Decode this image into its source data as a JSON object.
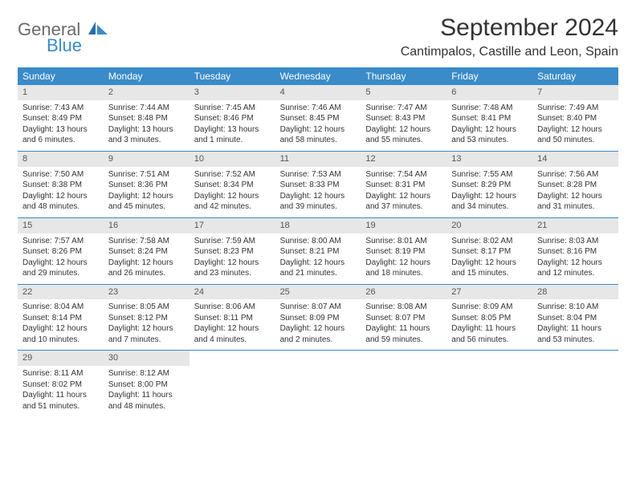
{
  "logo": {
    "text1": "General",
    "text2": "Blue"
  },
  "title": "September 2024",
  "location": "Cantimpalos, Castille and Leon, Spain",
  "colors": {
    "header_bg": "#3a8bc9",
    "header_text": "#ffffff",
    "daynum_bg": "#e7e7e7",
    "logo_gray": "#6b6b6b",
    "logo_blue": "#3a8bc9",
    "text": "#333333",
    "row_border": "#3a8bc9"
  },
  "weekdays": [
    "Sunday",
    "Monday",
    "Tuesday",
    "Wednesday",
    "Thursday",
    "Friday",
    "Saturday"
  ],
  "weeks": [
    [
      {
        "day": "1",
        "sunrise": "Sunrise: 7:43 AM",
        "sunset": "Sunset: 8:49 PM",
        "daylight": "Daylight: 13 hours and 6 minutes."
      },
      {
        "day": "2",
        "sunrise": "Sunrise: 7:44 AM",
        "sunset": "Sunset: 8:48 PM",
        "daylight": "Daylight: 13 hours and 3 minutes."
      },
      {
        "day": "3",
        "sunrise": "Sunrise: 7:45 AM",
        "sunset": "Sunset: 8:46 PM",
        "daylight": "Daylight: 13 hours and 1 minute."
      },
      {
        "day": "4",
        "sunrise": "Sunrise: 7:46 AM",
        "sunset": "Sunset: 8:45 PM",
        "daylight": "Daylight: 12 hours and 58 minutes."
      },
      {
        "day": "5",
        "sunrise": "Sunrise: 7:47 AM",
        "sunset": "Sunset: 8:43 PM",
        "daylight": "Daylight: 12 hours and 55 minutes."
      },
      {
        "day": "6",
        "sunrise": "Sunrise: 7:48 AM",
        "sunset": "Sunset: 8:41 PM",
        "daylight": "Daylight: 12 hours and 53 minutes."
      },
      {
        "day": "7",
        "sunrise": "Sunrise: 7:49 AM",
        "sunset": "Sunset: 8:40 PM",
        "daylight": "Daylight: 12 hours and 50 minutes."
      }
    ],
    [
      {
        "day": "8",
        "sunrise": "Sunrise: 7:50 AM",
        "sunset": "Sunset: 8:38 PM",
        "daylight": "Daylight: 12 hours and 48 minutes."
      },
      {
        "day": "9",
        "sunrise": "Sunrise: 7:51 AM",
        "sunset": "Sunset: 8:36 PM",
        "daylight": "Daylight: 12 hours and 45 minutes."
      },
      {
        "day": "10",
        "sunrise": "Sunrise: 7:52 AM",
        "sunset": "Sunset: 8:34 PM",
        "daylight": "Daylight: 12 hours and 42 minutes."
      },
      {
        "day": "11",
        "sunrise": "Sunrise: 7:53 AM",
        "sunset": "Sunset: 8:33 PM",
        "daylight": "Daylight: 12 hours and 39 minutes."
      },
      {
        "day": "12",
        "sunrise": "Sunrise: 7:54 AM",
        "sunset": "Sunset: 8:31 PM",
        "daylight": "Daylight: 12 hours and 37 minutes."
      },
      {
        "day": "13",
        "sunrise": "Sunrise: 7:55 AM",
        "sunset": "Sunset: 8:29 PM",
        "daylight": "Daylight: 12 hours and 34 minutes."
      },
      {
        "day": "14",
        "sunrise": "Sunrise: 7:56 AM",
        "sunset": "Sunset: 8:28 PM",
        "daylight": "Daylight: 12 hours and 31 minutes."
      }
    ],
    [
      {
        "day": "15",
        "sunrise": "Sunrise: 7:57 AM",
        "sunset": "Sunset: 8:26 PM",
        "daylight": "Daylight: 12 hours and 29 minutes."
      },
      {
        "day": "16",
        "sunrise": "Sunrise: 7:58 AM",
        "sunset": "Sunset: 8:24 PM",
        "daylight": "Daylight: 12 hours and 26 minutes."
      },
      {
        "day": "17",
        "sunrise": "Sunrise: 7:59 AM",
        "sunset": "Sunset: 8:23 PM",
        "daylight": "Daylight: 12 hours and 23 minutes."
      },
      {
        "day": "18",
        "sunrise": "Sunrise: 8:00 AM",
        "sunset": "Sunset: 8:21 PM",
        "daylight": "Daylight: 12 hours and 21 minutes."
      },
      {
        "day": "19",
        "sunrise": "Sunrise: 8:01 AM",
        "sunset": "Sunset: 8:19 PM",
        "daylight": "Daylight: 12 hours and 18 minutes."
      },
      {
        "day": "20",
        "sunrise": "Sunrise: 8:02 AM",
        "sunset": "Sunset: 8:17 PM",
        "daylight": "Daylight: 12 hours and 15 minutes."
      },
      {
        "day": "21",
        "sunrise": "Sunrise: 8:03 AM",
        "sunset": "Sunset: 8:16 PM",
        "daylight": "Daylight: 12 hours and 12 minutes."
      }
    ],
    [
      {
        "day": "22",
        "sunrise": "Sunrise: 8:04 AM",
        "sunset": "Sunset: 8:14 PM",
        "daylight": "Daylight: 12 hours and 10 minutes."
      },
      {
        "day": "23",
        "sunrise": "Sunrise: 8:05 AM",
        "sunset": "Sunset: 8:12 PM",
        "daylight": "Daylight: 12 hours and 7 minutes."
      },
      {
        "day": "24",
        "sunrise": "Sunrise: 8:06 AM",
        "sunset": "Sunset: 8:11 PM",
        "daylight": "Daylight: 12 hours and 4 minutes."
      },
      {
        "day": "25",
        "sunrise": "Sunrise: 8:07 AM",
        "sunset": "Sunset: 8:09 PM",
        "daylight": "Daylight: 12 hours and 2 minutes."
      },
      {
        "day": "26",
        "sunrise": "Sunrise: 8:08 AM",
        "sunset": "Sunset: 8:07 PM",
        "daylight": "Daylight: 11 hours and 59 minutes."
      },
      {
        "day": "27",
        "sunrise": "Sunrise: 8:09 AM",
        "sunset": "Sunset: 8:05 PM",
        "daylight": "Daylight: 11 hours and 56 minutes."
      },
      {
        "day": "28",
        "sunrise": "Sunrise: 8:10 AM",
        "sunset": "Sunset: 8:04 PM",
        "daylight": "Daylight: 11 hours and 53 minutes."
      }
    ],
    [
      {
        "day": "29",
        "sunrise": "Sunrise: 8:11 AM",
        "sunset": "Sunset: 8:02 PM",
        "daylight": "Daylight: 11 hours and 51 minutes."
      },
      {
        "day": "30",
        "sunrise": "Sunrise: 8:12 AM",
        "sunset": "Sunset: 8:00 PM",
        "daylight": "Daylight: 11 hours and 48 minutes."
      },
      null,
      null,
      null,
      null,
      null
    ]
  ]
}
